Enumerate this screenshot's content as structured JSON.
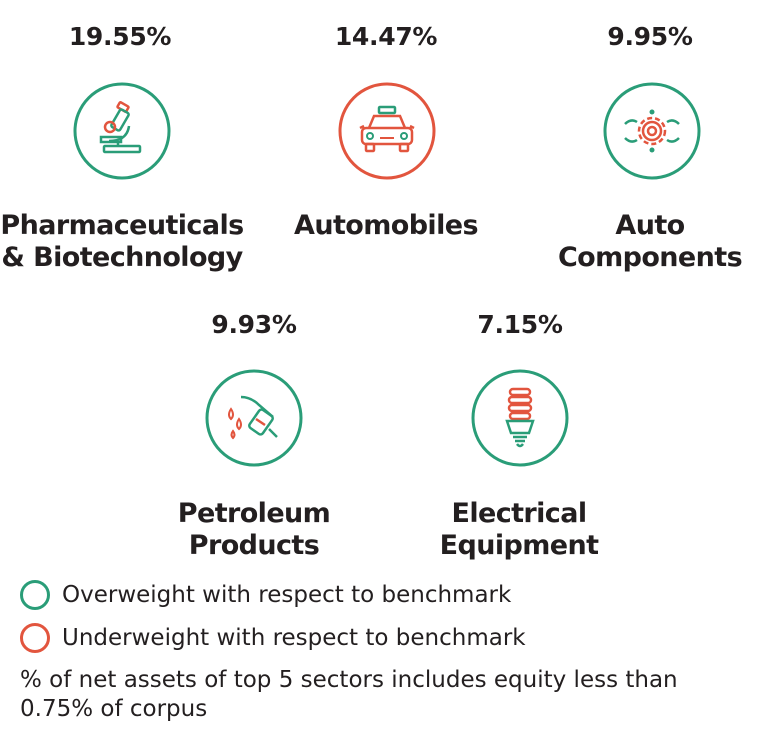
{
  "colors": {
    "overweight": "#2a9d78",
    "underweight": "#e2553e"
  },
  "sectors": [
    {
      "percent": "19.55%",
      "name": "Pharmaceuticals\n& Biotechnology",
      "weighting": "overweight",
      "icon": "microscope-icon"
    },
    {
      "percent": "14.47%",
      "name": "Automobiles",
      "weighting": "underweight",
      "icon": "car-icon"
    },
    {
      "percent": "9.95%",
      "name": "Auto\nComponents",
      "weighting": "overweight",
      "icon": "gears-icon"
    },
    {
      "percent": "9.93%",
      "name": "Petroleum\nProducts",
      "weighting": "overweight",
      "icon": "fuel-nozzle-icon"
    },
    {
      "percent": "7.15%",
      "name": "Electrical\nEquipment",
      "weighting": "overweight",
      "icon": "cfl-bulb-icon"
    }
  ],
  "legend": [
    {
      "label": "Overweight with respect to benchmark",
      "weighting": "overweight"
    },
    {
      "label": "Underweight with respect to benchmark",
      "weighting": "underweight"
    }
  ],
  "note": "% of net assets of top 5 sectors includes equity less than 0.75% of corpus"
}
